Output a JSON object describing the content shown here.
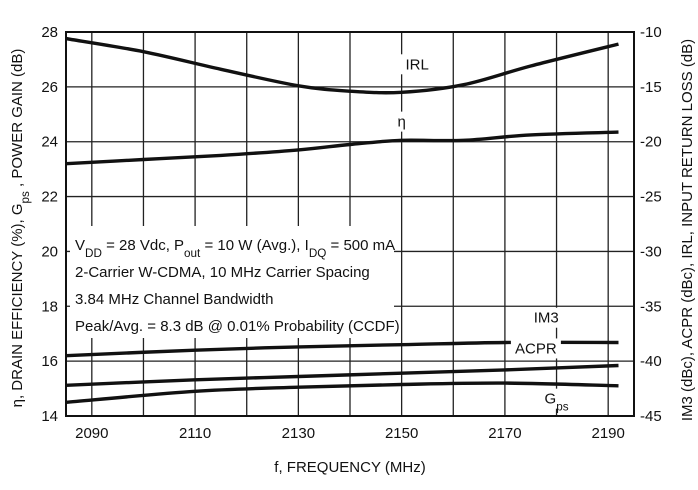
{
  "chart_data": {
    "type": "line",
    "xlabel": "f, FREQUENCY (MHz)",
    "ylabel_left": "η, DRAIN EFFICIENCY (%), G_ps , POWER GAIN (dB)",
    "ylabel_right": "IM3 (dBc), ACPR (dBc), IRL, INPUT RETURN LOSS (dB)",
    "xlim": [
      2085,
      2195
    ],
    "ylim_left": [
      14,
      28
    ],
    "ylim_right": [
      -45,
      -10
    ],
    "x_ticks": [
      2090,
      2110,
      2130,
      2150,
      2170,
      2190
    ],
    "y_left_ticks": [
      14,
      16,
      18,
      20,
      22,
      24,
      26,
      28
    ],
    "y_right_ticks": [
      -45,
      -40,
      -35,
      -30,
      -25,
      -20,
      -15,
      -10
    ],
    "grid": true,
    "annotation_lines": [
      "V_DD = 28 Vdc, P_out = 10 W (Avg.), I_DQ = 500 mA",
      "2-Carrier W-CDMA, 10 MHz Carrier Spacing",
      "3.84 MHz Channel Bandwidth",
      "Peak/Avg. = 8.3 dB @ 0.01% Probability (CCDF)"
    ],
    "series": [
      {
        "name": "IRL",
        "axis": "right",
        "x": [
          2085,
          2100,
          2115,
          2130,
          2140,
          2150,
          2162,
          2175,
          2192
        ],
        "values": [
          -10.6,
          -11.8,
          -13.4,
          -14.9,
          -15.4,
          -15.5,
          -14.8,
          -13.1,
          -11.1
        ]
      },
      {
        "name": "η",
        "axis": "left",
        "x": [
          2085,
          2100,
          2115,
          2130,
          2140,
          2150,
          2162,
          2175,
          2192
        ],
        "values": [
          23.2,
          23.35,
          23.5,
          23.7,
          23.9,
          24.05,
          24.05,
          24.25,
          24.35
        ]
      },
      {
        "name": "IM3",
        "axis": "right",
        "x": [
          2085,
          2110,
          2130,
          2150,
          2170,
          2192
        ],
        "values": [
          -39.5,
          -39.0,
          -38.7,
          -38.5,
          -38.3,
          -38.3
        ]
      },
      {
        "name": "ACPR",
        "axis": "right",
        "x": [
          2085,
          2110,
          2130,
          2150,
          2170,
          2192
        ],
        "values": [
          -42.2,
          -41.7,
          -41.4,
          -41.1,
          -40.8,
          -40.4
        ]
      },
      {
        "name": "G_ps",
        "axis": "left",
        "x": [
          2085,
          2110,
          2130,
          2150,
          2170,
          2192
        ],
        "values": [
          14.5,
          14.9,
          15.05,
          15.15,
          15.2,
          15.1
        ]
      }
    ]
  }
}
